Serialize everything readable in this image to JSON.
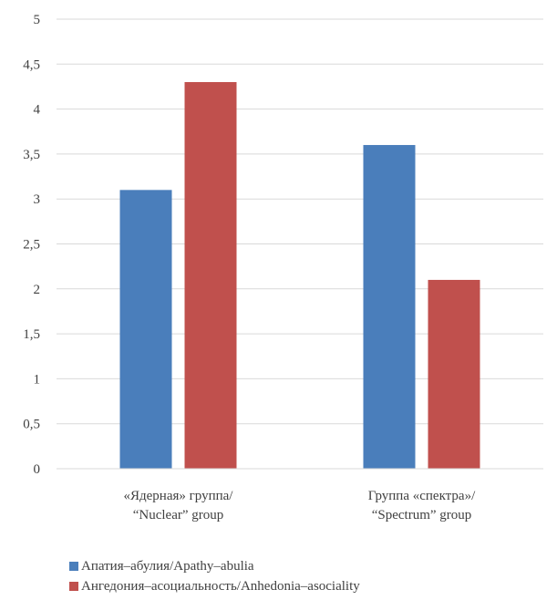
{
  "chart_data": {
    "type": "bar",
    "categories": [
      [
        "«Ядерная» группа/",
        "“Nuclear” group"
      ],
      [
        "Группа «спектра»/",
        "“Spectrum” group"
      ]
    ],
    "series": [
      {
        "name": "Апатия–абулия/Apathy–abulia",
        "values": [
          3.1,
          3.6
        ],
        "color": "#4a7ebb"
      },
      {
        "name": "Ангедония–асоциальность/Anhedonia–asociality",
        "values": [
          4.3,
          2.1
        ],
        "color": "#c0504d"
      }
    ],
    "ylim": [
      0,
      5
    ],
    "yticks": [
      "0",
      "0,5",
      "1",
      "1,5",
      "2",
      "2,5",
      "3",
      "3,5",
      "4",
      "4,5",
      "5"
    ],
    "grid": true,
    "legend_position": "bottom-left"
  }
}
